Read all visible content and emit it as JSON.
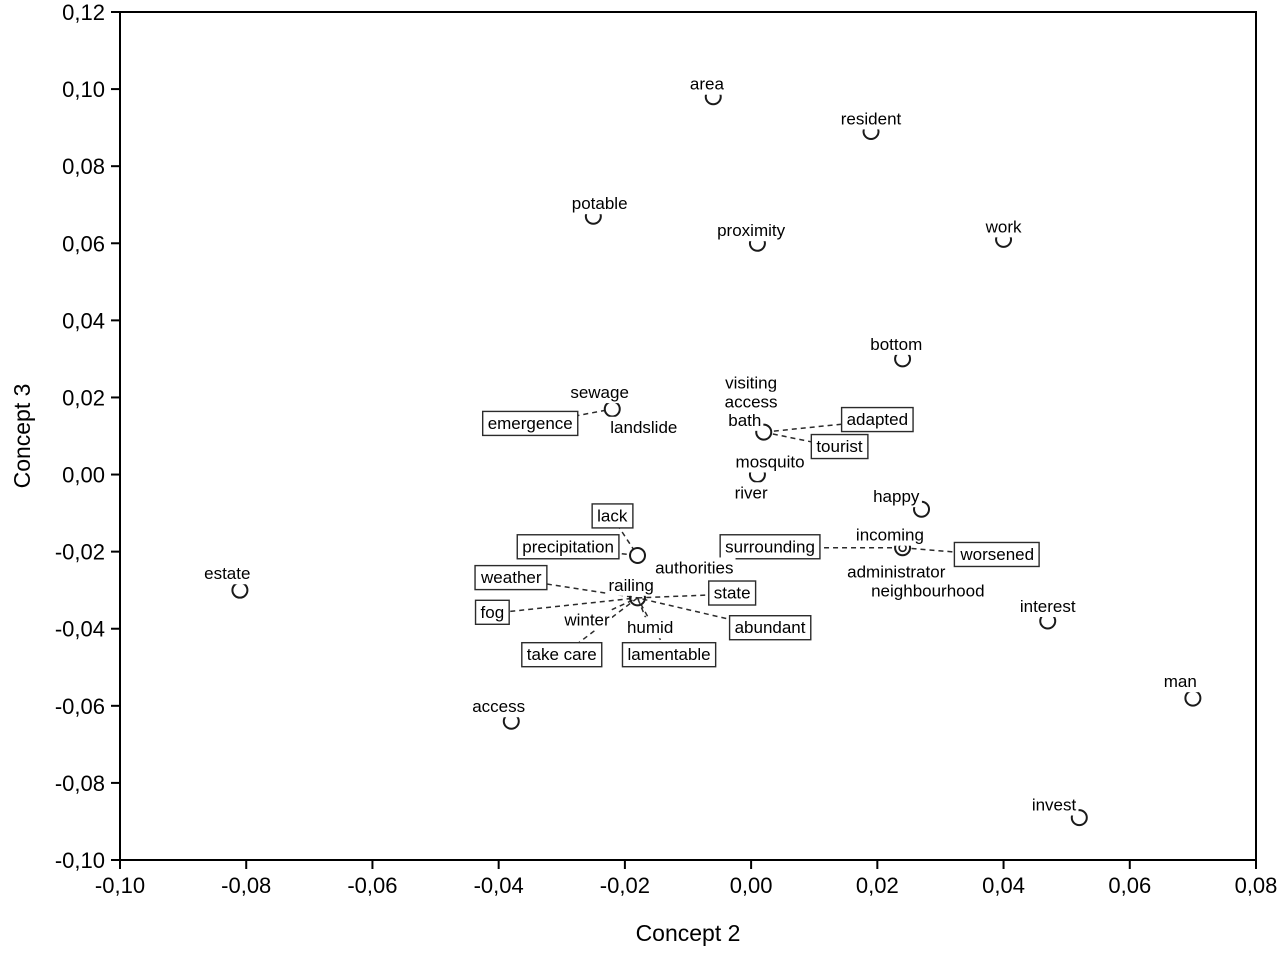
{
  "chart_data": {
    "type": "scatter",
    "title": "",
    "xlabel": "Concept 2",
    "ylabel": "Concept 3",
    "xlim": [
      -0.1,
      0.08
    ],
    "ylim": [
      -0.1,
      0.12
    ],
    "grid": false,
    "frame": true,
    "decimal_style": "comma",
    "x_ticks": [
      {
        "v": -0.1,
        "label": "-0,10"
      },
      {
        "v": -0.08,
        "label": "-0,08"
      },
      {
        "v": -0.06,
        "label": "-0,06"
      },
      {
        "v": -0.04,
        "label": "-0,04"
      },
      {
        "v": -0.02,
        "label": "-0,02"
      },
      {
        "v": 0.0,
        "label": "0,00"
      },
      {
        "v": 0.02,
        "label": "0,02"
      },
      {
        "v": 0.04,
        "label": "0,04"
      },
      {
        "v": 0.06,
        "label": "0,06"
      },
      {
        "v": 0.08,
        "label": "0,08"
      }
    ],
    "y_ticks": [
      {
        "v": -0.1,
        "label": "-0,10"
      },
      {
        "v": -0.08,
        "label": "-0,08"
      },
      {
        "v": -0.06,
        "label": "-0,06"
      },
      {
        "v": -0.04,
        "label": "-0,04"
      },
      {
        "v": -0.02,
        "label": "-0,02"
      },
      {
        "v": 0.0,
        "label": "0,00"
      },
      {
        "v": 0.02,
        "label": "0,02"
      },
      {
        "v": 0.04,
        "label": "0,04"
      },
      {
        "v": 0.06,
        "label": "0,06"
      },
      {
        "v": 0.08,
        "label": "0,08"
      },
      {
        "v": 0.1,
        "label": "0,10"
      },
      {
        "v": 0.12,
        "label": "0,12"
      }
    ],
    "points": [
      {
        "id": "area",
        "x": -0.006,
        "y": 0.098
      },
      {
        "id": "resident",
        "x": 0.019,
        "y": 0.089
      },
      {
        "id": "potable",
        "x": -0.025,
        "y": 0.067
      },
      {
        "id": "proximity",
        "x": 0.001,
        "y": 0.06
      },
      {
        "id": "work",
        "x": 0.04,
        "y": 0.061
      },
      {
        "id": "bottom",
        "x": 0.024,
        "y": 0.03
      },
      {
        "id": "sewage",
        "x": -0.022,
        "y": 0.017
      },
      {
        "id": "bath",
        "x": 0.002,
        "y": 0.011
      },
      {
        "id": "mosquito",
        "x": 0.001,
        "y": 0.0
      },
      {
        "id": "happy",
        "x": 0.027,
        "y": -0.009
      },
      {
        "id": "authorities",
        "x": -0.018,
        "y": -0.021
      },
      {
        "id": "incoming",
        "x": 0.024,
        "y": -0.019,
        "double": true
      },
      {
        "id": "railing",
        "x": -0.018,
        "y": -0.032,
        "open": true
      },
      {
        "id": "estate",
        "x": -0.081,
        "y": -0.03
      },
      {
        "id": "interest",
        "x": 0.047,
        "y": -0.038
      },
      {
        "id": "man",
        "x": 0.07,
        "y": -0.058
      },
      {
        "id": "access",
        "x": -0.038,
        "y": -0.064
      },
      {
        "id": "invest",
        "x": 0.052,
        "y": -0.089
      }
    ],
    "labels": [
      {
        "id": "area-label",
        "text": "area",
        "x": -0.007,
        "y": 0.101,
        "boxed": false
      },
      {
        "id": "resident-label",
        "text": "resident",
        "x": 0.019,
        "y": 0.092,
        "boxed": false
      },
      {
        "id": "potable-label",
        "text": "potable",
        "x": -0.024,
        "y": 0.07,
        "boxed": false
      },
      {
        "id": "proximity-label",
        "text": "proximity",
        "x": 0.0,
        "y": 0.063,
        "boxed": false
      },
      {
        "id": "work-label",
        "text": "work",
        "x": 0.04,
        "y": 0.064,
        "boxed": false
      },
      {
        "id": "bottom-label",
        "text": "bottom",
        "x": 0.023,
        "y": 0.0335,
        "boxed": false
      },
      {
        "id": "sewage-label",
        "text": "sewage",
        "x": -0.024,
        "y": 0.021,
        "boxed": false
      },
      {
        "id": "landslide-label",
        "text": "landslide",
        "x": -0.017,
        "y": 0.012,
        "boxed": false
      },
      {
        "id": "emergence-label",
        "text": "emergence",
        "x": -0.035,
        "y": 0.013,
        "boxed": true
      },
      {
        "id": "visiting-label",
        "text": "visiting",
        "x": 0.0,
        "y": 0.0235,
        "boxed": false
      },
      {
        "id": "access-top-label",
        "text": "access",
        "x": 0.0,
        "y": 0.0185,
        "boxed": false
      },
      {
        "id": "bath-label",
        "text": "bath",
        "x": -0.001,
        "y": 0.0138,
        "boxed": false
      },
      {
        "id": "adapted-label",
        "text": "adapted",
        "x": 0.02,
        "y": 0.014,
        "boxed": true
      },
      {
        "id": "tourist-label",
        "text": "tourist",
        "x": 0.014,
        "y": 0.007,
        "boxed": true
      },
      {
        "id": "mosquito-label",
        "text": "mosquito",
        "x": 0.003,
        "y": 0.003,
        "boxed": false
      },
      {
        "id": "river-label",
        "text": "river",
        "x": 0.0,
        "y": -0.005,
        "boxed": false
      },
      {
        "id": "happy-label",
        "text": "happy",
        "x": 0.023,
        "y": -0.006,
        "boxed": false
      },
      {
        "id": "lack-label",
        "text": "lack",
        "x": -0.022,
        "y": -0.011,
        "boxed": true
      },
      {
        "id": "precipitation-label",
        "text": "precipitation",
        "x": -0.029,
        "y": -0.019,
        "boxed": true
      },
      {
        "id": "surrounding-label",
        "text": "surrounding",
        "x": 0.003,
        "y": -0.019,
        "boxed": true
      },
      {
        "id": "incoming-label",
        "text": "incoming",
        "x": 0.022,
        "y": -0.016,
        "boxed": false
      },
      {
        "id": "worsened-label",
        "text": "worsened",
        "x": 0.039,
        "y": -0.021,
        "boxed": true
      },
      {
        "id": "authorities-label",
        "text": "authorities",
        "x": -0.009,
        "y": -0.0245,
        "boxed": false
      },
      {
        "id": "administrator-label",
        "text": "administrator",
        "x": 0.023,
        "y": -0.0255,
        "boxed": false
      },
      {
        "id": "neighbourhood-label",
        "text": "neighbourhood",
        "x": 0.028,
        "y": -0.0305,
        "boxed": false
      },
      {
        "id": "railing-label",
        "text": "railing",
        "x": -0.019,
        "y": -0.029,
        "boxed": false
      },
      {
        "id": "weather-label",
        "text": "weather",
        "x": -0.038,
        "y": -0.027,
        "boxed": true
      },
      {
        "id": "state-label",
        "text": "state",
        "x": -0.003,
        "y": -0.031,
        "boxed": true
      },
      {
        "id": "fog-label",
        "text": "fog",
        "x": -0.041,
        "y": -0.036,
        "boxed": true
      },
      {
        "id": "winter-label",
        "text": "winter",
        "x": -0.026,
        "y": -0.038,
        "boxed": false
      },
      {
        "id": "humid-label",
        "text": "humid",
        "x": -0.016,
        "y": -0.04,
        "boxed": false
      },
      {
        "id": "abundant-label",
        "text": "abundant",
        "x": 0.003,
        "y": -0.04,
        "boxed": true
      },
      {
        "id": "take-care-label",
        "text": "take care",
        "x": -0.03,
        "y": -0.047,
        "boxed": true
      },
      {
        "id": "lamentable-label",
        "text": "lamentable",
        "x": -0.013,
        "y": -0.047,
        "boxed": true
      },
      {
        "id": "estate-label",
        "text": "estate",
        "x": -0.083,
        "y": -0.026,
        "boxed": false
      },
      {
        "id": "interest-label",
        "text": "interest",
        "x": 0.047,
        "y": -0.0345,
        "boxed": false
      },
      {
        "id": "man-label",
        "text": "man",
        "x": 0.068,
        "y": -0.054,
        "boxed": false
      },
      {
        "id": "access-bottom-label",
        "text": "access",
        "x": -0.04,
        "y": -0.0605,
        "boxed": false
      },
      {
        "id": "invest-label",
        "text": "invest",
        "x": 0.048,
        "y": -0.086,
        "boxed": false
      }
    ],
    "leaders": [
      {
        "from": "emergence-label",
        "to": "sewage"
      },
      {
        "from": "adapted-label",
        "to": "bath"
      },
      {
        "from": "tourist-label",
        "to": "bath"
      },
      {
        "from": "lack-label",
        "to": "authorities"
      },
      {
        "from": "precipitation-label",
        "to": "authorities"
      },
      {
        "from": "surrounding-label",
        "to": "incoming"
      },
      {
        "from": "worsened-label",
        "to": "incoming"
      },
      {
        "from": "weather-label",
        "to": "railing"
      },
      {
        "from": "fog-label",
        "to": "railing"
      },
      {
        "from": "state-label",
        "to": "railing"
      },
      {
        "from": "abundant-label",
        "to": "railing"
      },
      {
        "from": "take-care-label",
        "to": "railing"
      },
      {
        "from": "lamentable-label",
        "to": "railing"
      },
      {
        "from": "winter-label",
        "to": "railing"
      },
      {
        "from": "humid-label",
        "to": "railing"
      }
    ],
    "style": {
      "frame_color": "#000000",
      "marker_stroke": "#1a1a1a",
      "marker_fill": "#ffffff",
      "leader_color": "#2b2b2b",
      "box_stroke": "#2b2b2b",
      "text_color": "#000000",
      "background": "#ffffff"
    }
  }
}
